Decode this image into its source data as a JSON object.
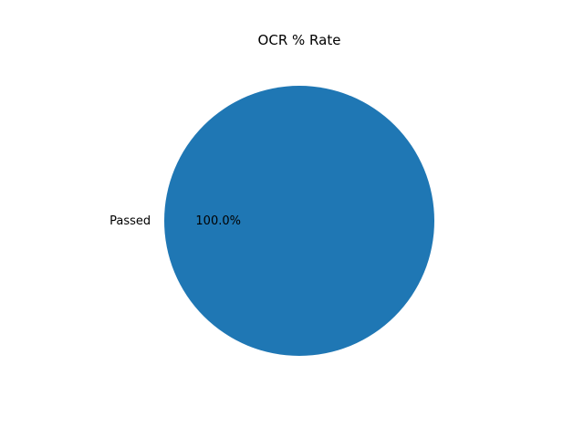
{
  "chart_data": {
    "type": "pie",
    "title": "OCR % Rate",
    "slices": [
      {
        "label": "Passed",
        "value": 100,
        "percent_label": "100.0%",
        "color": "#1f77b4"
      }
    ]
  }
}
